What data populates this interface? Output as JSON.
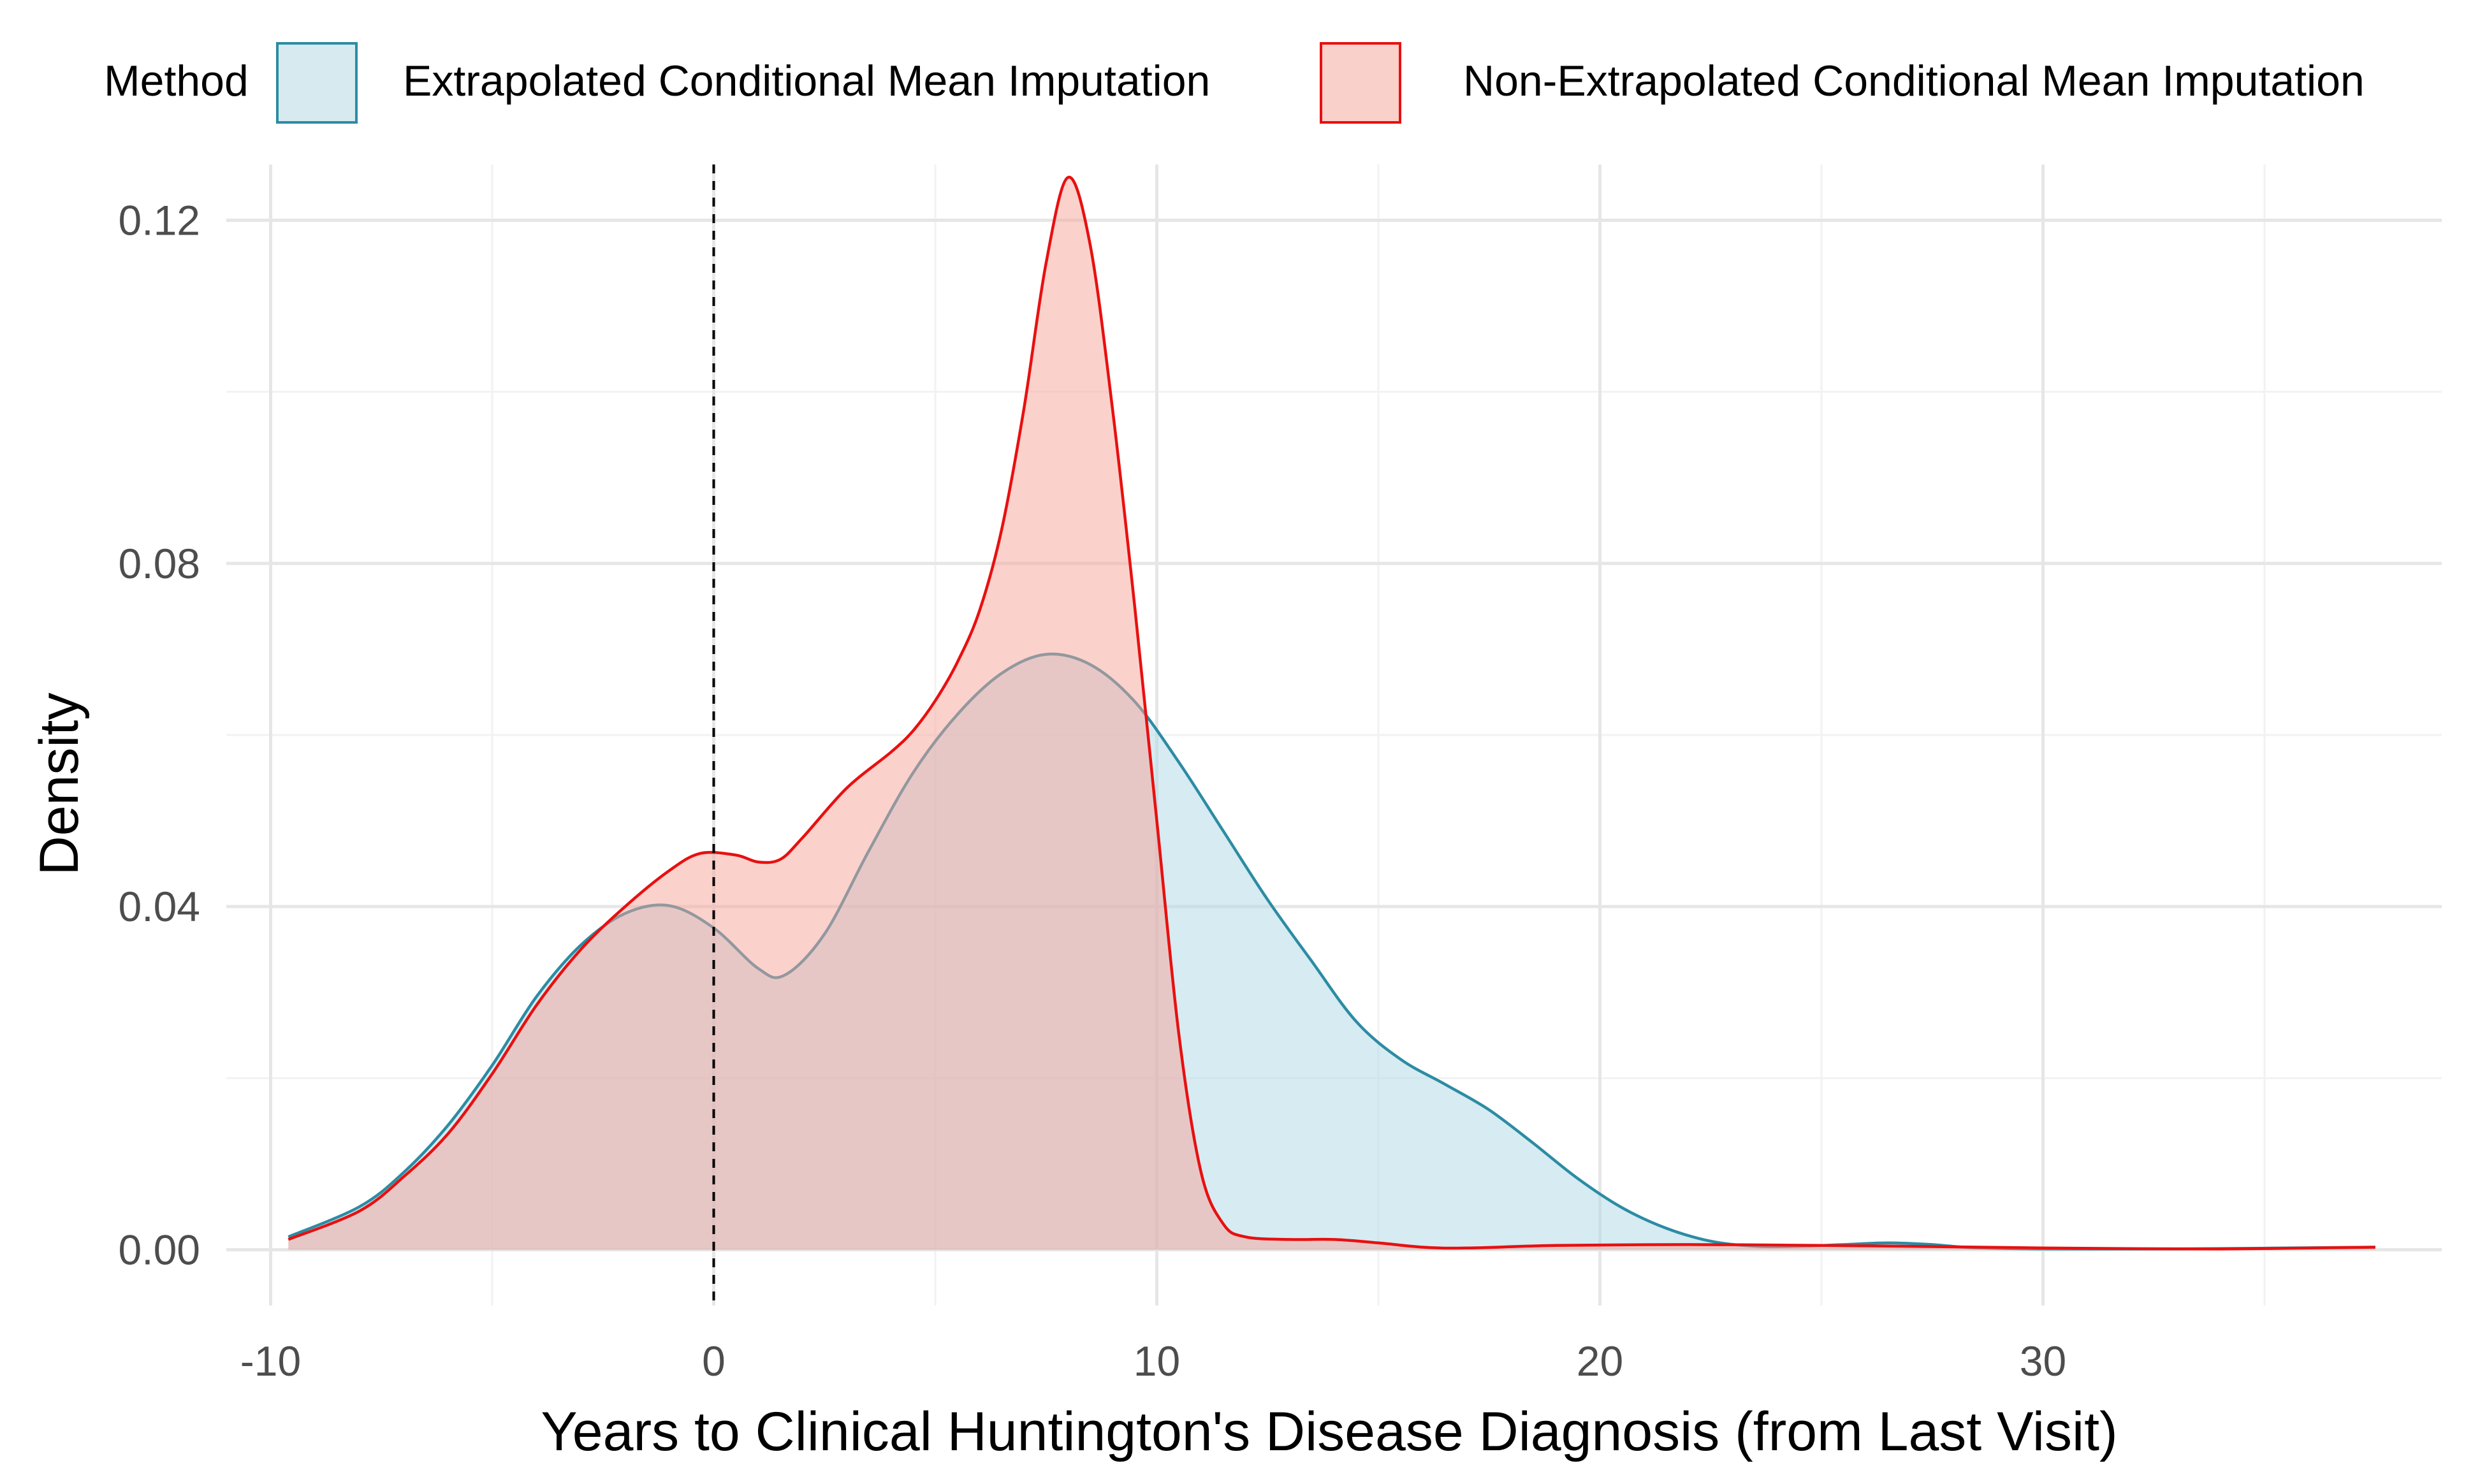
{
  "chart_data": {
    "type": "area",
    "xlabel": "Years to Clinical Huntington's Disease Diagnosis (from Last Visit)",
    "ylabel": "Density",
    "xlim": [
      -11,
      39
    ],
    "ylim": [
      -0.0065,
      0.1265
    ],
    "x_ticks": [
      -10,
      0,
      10,
      20,
      30
    ],
    "x_tick_labels": [
      "-10",
      "0",
      "10",
      "20",
      "30"
    ],
    "y_ticks": [
      0,
      0.04,
      0.08,
      0.12
    ],
    "y_tick_labels": [
      "0.00",
      "0.04",
      "0.08",
      "0.12"
    ],
    "grid": true,
    "legend_position": "top",
    "legend_title": "Method",
    "reference_line": {
      "x": 0,
      "style": "dashed",
      "color": "#000000"
    },
    "series": [
      {
        "name": "Extrapolated Conditional Mean Imputation",
        "fill": "#add8e6",
        "stroke": "#2c8ca3",
        "points": [
          [
            -9.6,
            0.0015
          ],
          [
            -8,
            0.005
          ],
          [
            -7,
            0.009
          ],
          [
            -6,
            0.0145
          ],
          [
            -5,
            0.0215
          ],
          [
            -4,
            0.0295
          ],
          [
            -3,
            0.0355
          ],
          [
            -2,
            0.0392
          ],
          [
            -1,
            0.0401
          ],
          [
            0,
            0.0375
          ],
          [
            1,
            0.0328
          ],
          [
            1.6,
            0.032
          ],
          [
            2.5,
            0.0368
          ],
          [
            3.5,
            0.0465
          ],
          [
            4.5,
            0.0556
          ],
          [
            5.5,
            0.0624
          ],
          [
            6.5,
            0.0672
          ],
          [
            7.5,
            0.0694
          ],
          [
            8.5,
            0.0682
          ],
          [
            9.5,
            0.0639
          ],
          [
            10.5,
            0.0568
          ],
          [
            11.5,
            0.0488
          ],
          [
            12.5,
            0.0408
          ],
          [
            13.5,
            0.0336
          ],
          [
            14.5,
            0.0266
          ],
          [
            15.5,
            0.0222
          ],
          [
            16.5,
            0.0193
          ],
          [
            17.5,
            0.0163
          ],
          [
            18.5,
            0.0124
          ],
          [
            19.5,
            0.0083
          ],
          [
            20.5,
            0.0049
          ],
          [
            21.5,
            0.0025
          ],
          [
            22.5,
            0.001
          ],
          [
            23.5,
            0.0004
          ],
          [
            24.5,
            0.0004
          ],
          [
            25.5,
            0.0006
          ],
          [
            26.5,
            0.0008
          ],
          [
            27.5,
            0.0006
          ],
          [
            28.5,
            0.0002
          ],
          [
            30,
            0.0001
          ],
          [
            33,
            0.0001
          ],
          [
            37.5,
            0.0003
          ]
        ]
      },
      {
        "name": "Non-Extrapolated Conditional Mean Imputation",
        "fill": "#f8a39a",
        "stroke": "#e81010",
        "points": [
          [
            -9.6,
            0.0012
          ],
          [
            -8,
            0.0045
          ],
          [
            -7,
            0.0085
          ],
          [
            -6,
            0.0135
          ],
          [
            -5,
            0.0205
          ],
          [
            -4,
            0.0285
          ],
          [
            -3,
            0.035
          ],
          [
            -2,
            0.04
          ],
          [
            -1,
            0.0442
          ],
          [
            -0.3,
            0.0462
          ],
          [
            0.5,
            0.046
          ],
          [
            1,
            0.0452
          ],
          [
            1.5,
            0.0455
          ],
          [
            2,
            0.048
          ],
          [
            3,
            0.0538
          ],
          [
            4,
            0.058
          ],
          [
            4.5,
            0.0605
          ],
          [
            5,
            0.064
          ],
          [
            5.5,
            0.0685
          ],
          [
            6,
            0.0745
          ],
          [
            6.5,
            0.084
          ],
          [
            7,
            0.098
          ],
          [
            7.5,
            0.115
          ],
          [
            8,
            0.125
          ],
          [
            8.5,
            0.117
          ],
          [
            9,
            0.098
          ],
          [
            9.5,
            0.075
          ],
          [
            10,
            0.05
          ],
          [
            10.5,
            0.025
          ],
          [
            11,
            0.009
          ],
          [
            11.5,
            0.003
          ],
          [
            12,
            0.0015
          ],
          [
            13,
            0.0012
          ],
          [
            14,
            0.0012
          ],
          [
            15,
            0.0008
          ],
          [
            16,
            0.0003
          ],
          [
            17,
            0.0002
          ],
          [
            19,
            0.0005
          ],
          [
            22,
            0.0006
          ],
          [
            25,
            0.0005
          ],
          [
            27,
            0.0004
          ],
          [
            30,
            0.0002
          ],
          [
            34,
            0.0001
          ],
          [
            37.5,
            0.0003
          ]
        ]
      }
    ]
  }
}
